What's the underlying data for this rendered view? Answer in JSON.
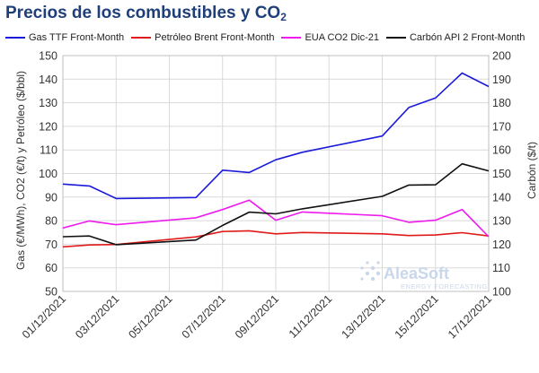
{
  "title_main": "Precios de los combustibles y CO",
  "title_sub": "2",
  "watermark": {
    "brand": "AleaSoft",
    "tagline": "ENERGY FORECASTING"
  },
  "chart_data": {
    "type": "line",
    "title": "Precios de los combustibles y CO2",
    "x": [
      "01/12/2021",
      "02/12/2021",
      "03/12/2021",
      "06/12/2021",
      "07/12/2021",
      "08/12/2021",
      "09/12/2021",
      "10/12/2021",
      "13/12/2021",
      "14/12/2021",
      "15/12/2021",
      "16/12/2021",
      "17/12/2021"
    ],
    "xticks": [
      "01/12/2021",
      "03/12/2021",
      "05/12/2021",
      "07/12/2021",
      "09/12/2021",
      "11/12/2021",
      "13/12/2021",
      "15/12/2021",
      "17/12/2021"
    ],
    "xlim": [
      "01/12/2021",
      "17/12/2021"
    ],
    "ylabel": "Gas (€/MWh), CO2 (€/t)  y Petróleo ($/bbl)",
    "ylim": [
      50,
      150
    ],
    "yticks": [
      50,
      60,
      70,
      80,
      90,
      100,
      110,
      120,
      130,
      140,
      150
    ],
    "y2label": "Carbón ($/t)",
    "y2lim": [
      100,
      200
    ],
    "y2ticks": [
      100,
      110,
      120,
      130,
      140,
      150,
      160,
      170,
      180,
      190,
      200
    ],
    "grid": true,
    "legend_position": "top",
    "series": [
      {
        "name": "Gas TTF Front-Month",
        "axis": "left",
        "color": "#1a1adb",
        "values": [
          95.5,
          94.7,
          89.4,
          89.8,
          101.4,
          100.4,
          105.8,
          109.0,
          115.9,
          128.0,
          132.0,
          142.6,
          136.9
        ]
      },
      {
        "name": "Petróleo Brent Front-Month",
        "axis": "left",
        "color": "#e01a1a",
        "values": [
          68.9,
          69.7,
          69.9,
          73.1,
          75.4,
          75.7,
          74.4,
          75.0,
          74.4,
          73.7,
          73.9,
          74.9,
          73.5
        ]
      },
      {
        "name": "EUA CO2 Dic-21",
        "axis": "left",
        "color": "#ee1aee",
        "values": [
          76.9,
          79.9,
          78.3,
          81.2,
          84.7,
          88.7,
          80.2,
          83.7,
          82.1,
          79.3,
          80.2,
          84.7,
          73.2
        ]
      },
      {
        "name": "Carbón API 2 Front-Month",
        "axis": "right",
        "color": "#111111",
        "values": [
          123.2,
          123.5,
          119.8,
          121.8,
          128.0,
          133.6,
          132.9,
          135.0,
          140.3,
          145.1,
          145.2,
          154.1,
          151.1
        ]
      }
    ]
  }
}
